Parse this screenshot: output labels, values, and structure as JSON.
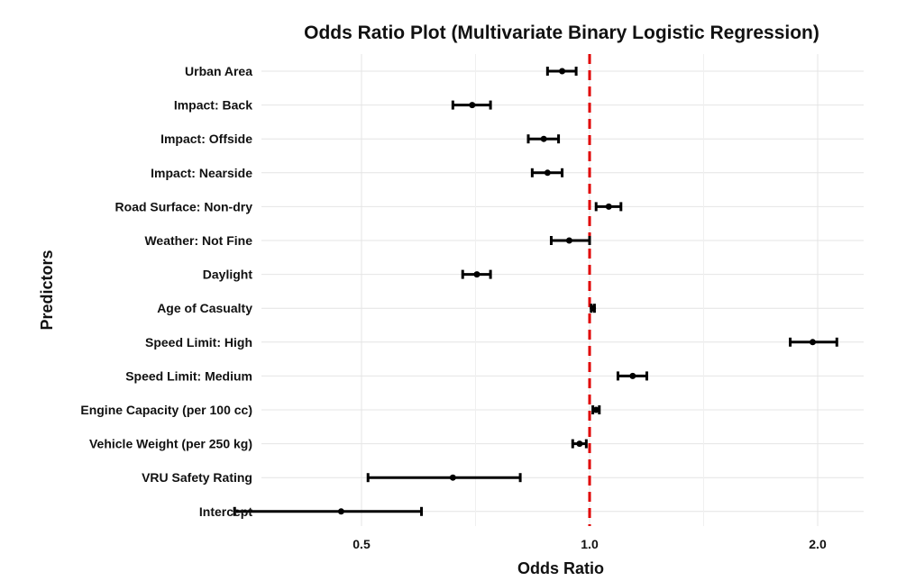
{
  "chart_data": {
    "type": "scatter",
    "subtype": "forest-plot",
    "title": "Odds Ratio Plot (Multivariate Binary Logistic Regression)",
    "xlabel": "Odds Ratio",
    "ylabel": "Predictors",
    "x_scale": "log",
    "xlim": [
      0.34,
      2.2
    ],
    "x_ticks": [
      0.5,
      1.0,
      2.0
    ],
    "x_tick_labels": [
      "0.5",
      "1.0",
      "2.0"
    ],
    "reference_line": {
      "x": 1.0,
      "color": "#e00000",
      "style": "dashed"
    },
    "grid": true,
    "predictors": [
      {
        "name": "Urban Area",
        "or": 0.92,
        "lower": 0.88,
        "upper": 0.96
      },
      {
        "name": "Impact: Back",
        "or": 0.7,
        "lower": 0.66,
        "upper": 0.74
      },
      {
        "name": "Impact: Offside",
        "or": 0.87,
        "lower": 0.83,
        "upper": 0.91
      },
      {
        "name": "Impact: Nearside",
        "or": 0.88,
        "lower": 0.84,
        "upper": 0.92
      },
      {
        "name": "Road Surface: Non-dry",
        "or": 1.06,
        "lower": 1.02,
        "upper": 1.1
      },
      {
        "name": "Weather: Not Fine",
        "or": 0.94,
        "lower": 0.89,
        "upper": 1.0
      },
      {
        "name": "Daylight",
        "or": 0.71,
        "lower": 0.68,
        "upper": 0.74
      },
      {
        "name": "Age of Casualty",
        "or": 1.01,
        "lower": 1.005,
        "upper": 1.015
      },
      {
        "name": "Speed Limit: High",
        "or": 1.97,
        "lower": 1.84,
        "upper": 2.12
      },
      {
        "name": "Speed Limit: Medium",
        "or": 1.14,
        "lower": 1.09,
        "upper": 1.19
      },
      {
        "name": "Engine Capacity (per 100 cc)",
        "or": 1.02,
        "lower": 1.01,
        "upper": 1.03
      },
      {
        "name": "Vehicle Weight (per 250 kg)",
        "or": 0.97,
        "lower": 0.95,
        "upper": 0.99
      },
      {
        "name": "VRU Safety Rating",
        "or": 0.66,
        "lower": 0.51,
        "upper": 0.81
      },
      {
        "name": "Intercept",
        "or": 0.47,
        "lower": 0.34,
        "upper": 0.6
      }
    ]
  }
}
